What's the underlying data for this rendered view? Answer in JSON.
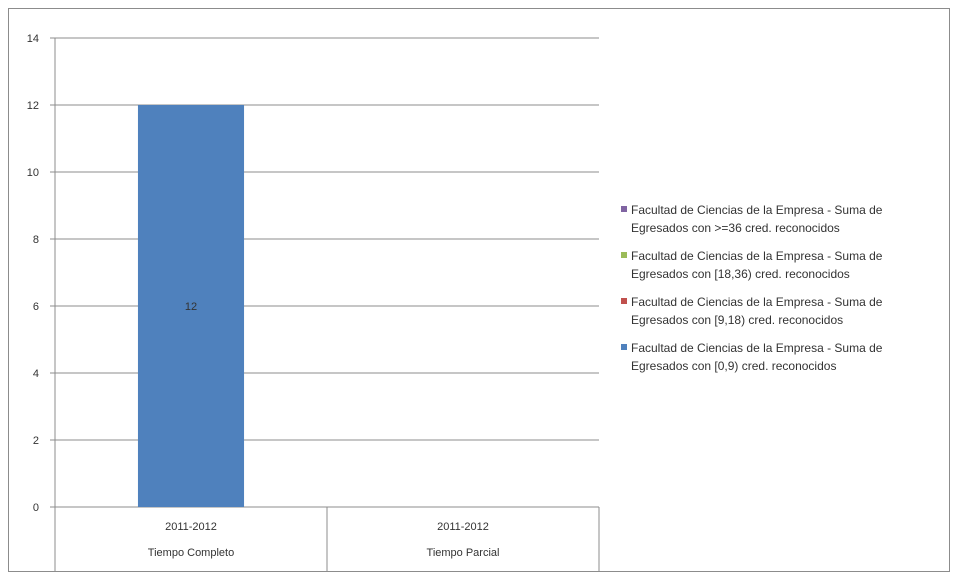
{
  "chart_data": {
    "type": "bar",
    "stacked": true,
    "categories": [
      [
        "2011-2012",
        "Tiempo Completo"
      ],
      [
        "2011-2012",
        "Tiempo Parcial"
      ]
    ],
    "ylim": [
      0,
      14
    ],
    "yticks": [
      0,
      2,
      4,
      6,
      8,
      10,
      12,
      14
    ],
    "grid": true,
    "legend_position": "right",
    "series": [
      {
        "name": "Facultad de Ciencias de la Empresa - Suma de Egresados con [0,9) cred. reconocidos",
        "legend_lines": [
          "Facultad de Ciencias de la Empresa - Suma de",
          "Egresados con [0,9) cred. reconocidos"
        ],
        "color": "#4f81bd",
        "values": [
          12,
          0
        ],
        "data_labels": [
          "12",
          ""
        ]
      },
      {
        "name": "Facultad de Ciencias de la Empresa - Suma de Egresados con [9,18) cred. reconocidos",
        "legend_lines": [
          "Facultad de Ciencias de la Empresa - Suma de",
          "Egresados con [9,18) cred. reconocidos"
        ],
        "color": "#c0504d",
        "values": [
          0,
          0
        ],
        "data_labels": [
          "",
          ""
        ]
      },
      {
        "name": "Facultad de Ciencias de la Empresa - Suma de Egresados con [18,36) cred. reconocidos",
        "legend_lines": [
          "Facultad de Ciencias de la Empresa - Suma de",
          "Egresados con [18,36) cred. reconocidos"
        ],
        "color": "#9bbb59",
        "values": [
          0,
          0
        ],
        "data_labels": [
          "",
          ""
        ]
      },
      {
        "name": "Facultad de Ciencias de la Empresa - Suma de Egresados con >=36 cred. reconocidos",
        "legend_lines": [
          "Facultad de Ciencias de la Empresa - Suma de",
          "Egresados con >=36 cred. reconocidos"
        ],
        "color": "#8064a2",
        "values": [
          0,
          0
        ],
        "data_labels": [
          "",
          ""
        ]
      }
    ],
    "legend_order": [
      3,
      2,
      1,
      0
    ]
  }
}
